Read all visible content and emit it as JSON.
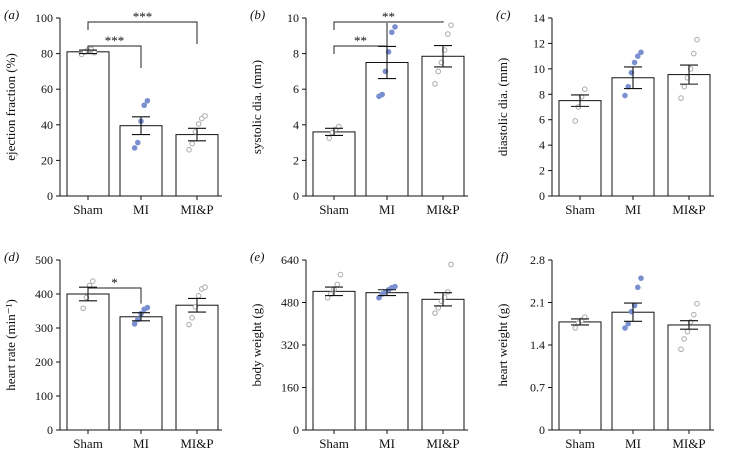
{
  "figure": {
    "colors": {
      "axis": "#111111",
      "bar_fill": "#ffffff",
      "sham_point": "#aaaaaa",
      "mi_point": "#7a8fd0",
      "mip_point": "#aaaaaa",
      "star": "#222222"
    }
  },
  "chart_data": [
    {
      "type": "bar",
      "panel": "(a)",
      "ylabel": "ejection fraction (%)",
      "categories": [
        "Sham",
        "MI",
        "MI&P"
      ],
      "values": [
        81,
        39.5,
        34.5
      ],
      "errors": [
        1,
        5,
        3.5
      ],
      "ylim": [
        0,
        100
      ],
      "yticks": [
        0,
        20,
        40,
        60,
        80,
        100
      ],
      "points": [
        [
          79.5,
          81,
          82,
          82.5,
          80.5
        ],
        [
          27,
          30,
          42,
          51,
          53.5
        ],
        [
          26,
          29.5,
          36,
          40.5,
          43.5,
          45
        ]
      ],
      "brackets": [
        {
          "from": 0,
          "to": 1,
          "label": "***"
        },
        {
          "from": 0,
          "to": 2,
          "label": "***"
        }
      ]
    },
    {
      "type": "bar",
      "panel": "(b)",
      "ylabel": "systolic dia. (mm)",
      "categories": [
        "Sham",
        "MI",
        "MI&P"
      ],
      "values": [
        3.6,
        7.5,
        7.85
      ],
      "errors": [
        0.2,
        0.9,
        0.6
      ],
      "ylim": [
        0,
        10
      ],
      "yticks": [
        0,
        2,
        4,
        6,
        8,
        10
      ],
      "points": [
        [
          3.25,
          3.55,
          3.75,
          3.9
        ],
        [
          5.6,
          5.7,
          7.0,
          8.1,
          9.2,
          9.5
        ],
        [
          6.3,
          7.0,
          7.5,
          8.2,
          9.1,
          9.6
        ]
      ],
      "brackets": [
        {
          "from": 0,
          "to": 1,
          "label": "**"
        },
        {
          "from": 0,
          "to": 2,
          "label": "**"
        }
      ]
    },
    {
      "type": "bar",
      "panel": "(c)",
      "ylabel": "diastolic dia. (mm)",
      "categories": [
        "Sham",
        "MI",
        "MI&P"
      ],
      "values": [
        7.5,
        9.3,
        9.55
      ],
      "errors": [
        0.45,
        0.85,
        0.75
      ],
      "ylim": [
        0,
        14
      ],
      "yticks": [
        0,
        2,
        4,
        6,
        8,
        10,
        12,
        14
      ],
      "points": [
        [
          5.9,
          7.0,
          7.8,
          8.4
        ],
        [
          7.9,
          8.6,
          9.7,
          10.5,
          11.0,
          11.3
        ],
        [
          7.7,
          8.6,
          9.3,
          10.0,
          11.2,
          12.3
        ]
      ],
      "brackets": []
    },
    {
      "type": "bar",
      "panel": "(d)",
      "ylabel": "heart rate (min⁻¹)",
      "categories": [
        "Sham",
        "MI",
        "MI&P"
      ],
      "values": [
        400,
        333,
        367
      ],
      "errors": [
        20,
        12,
        20
      ],
      "ylim": [
        0,
        500
      ],
      "yticks": [
        0,
        100,
        200,
        300,
        400,
        500
      ],
      "points": [
        [
          358,
          390,
          425,
          438
        ],
        [
          312,
          325,
          342,
          355,
          360
        ],
        [
          310,
          330,
          362,
          395,
          415,
          420
        ]
      ],
      "brackets": [
        {
          "from": 0,
          "to": 1,
          "label": "*"
        }
      ]
    },
    {
      "type": "bar",
      "panel": "(e)",
      "ylabel": "body weight (g)",
      "categories": [
        "Sham",
        "MI",
        "MI&P"
      ],
      "values": [
        522,
        517,
        492
      ],
      "errors": [
        16,
        11,
        25
      ],
      "ylim": [
        0,
        640
      ],
      "yticks": [
        0,
        160,
        320,
        480,
        640
      ],
      "points": [
        [
          498,
          512,
          530,
          548,
          585
        ],
        [
          498,
          512,
          520,
          528,
          536,
          540
        ],
        [
          440,
          460,
          485,
          500,
          520,
          623
        ]
      ],
      "brackets": []
    },
    {
      "type": "bar",
      "panel": "(f)",
      "ylabel": "heart weight (g)",
      "categories": [
        "Sham",
        "MI",
        "MI&P"
      ],
      "values": [
        1.78,
        1.94,
        1.73
      ],
      "errors": [
        0.05,
        0.15,
        0.07
      ],
      "ylim": [
        0,
        2.8
      ],
      "yticks": [
        "0",
        "0.7",
        "1.4",
        "2.1",
        "2.8"
      ],
      "points": [
        [
          1.68,
          1.76,
          1.81,
          1.86
        ],
        [
          1.68,
          1.75,
          1.95,
          2.05,
          2.35,
          2.5
        ],
        [
          1.33,
          1.5,
          1.62,
          1.78,
          1.9,
          2.08
        ]
      ],
      "brackets": []
    }
  ]
}
